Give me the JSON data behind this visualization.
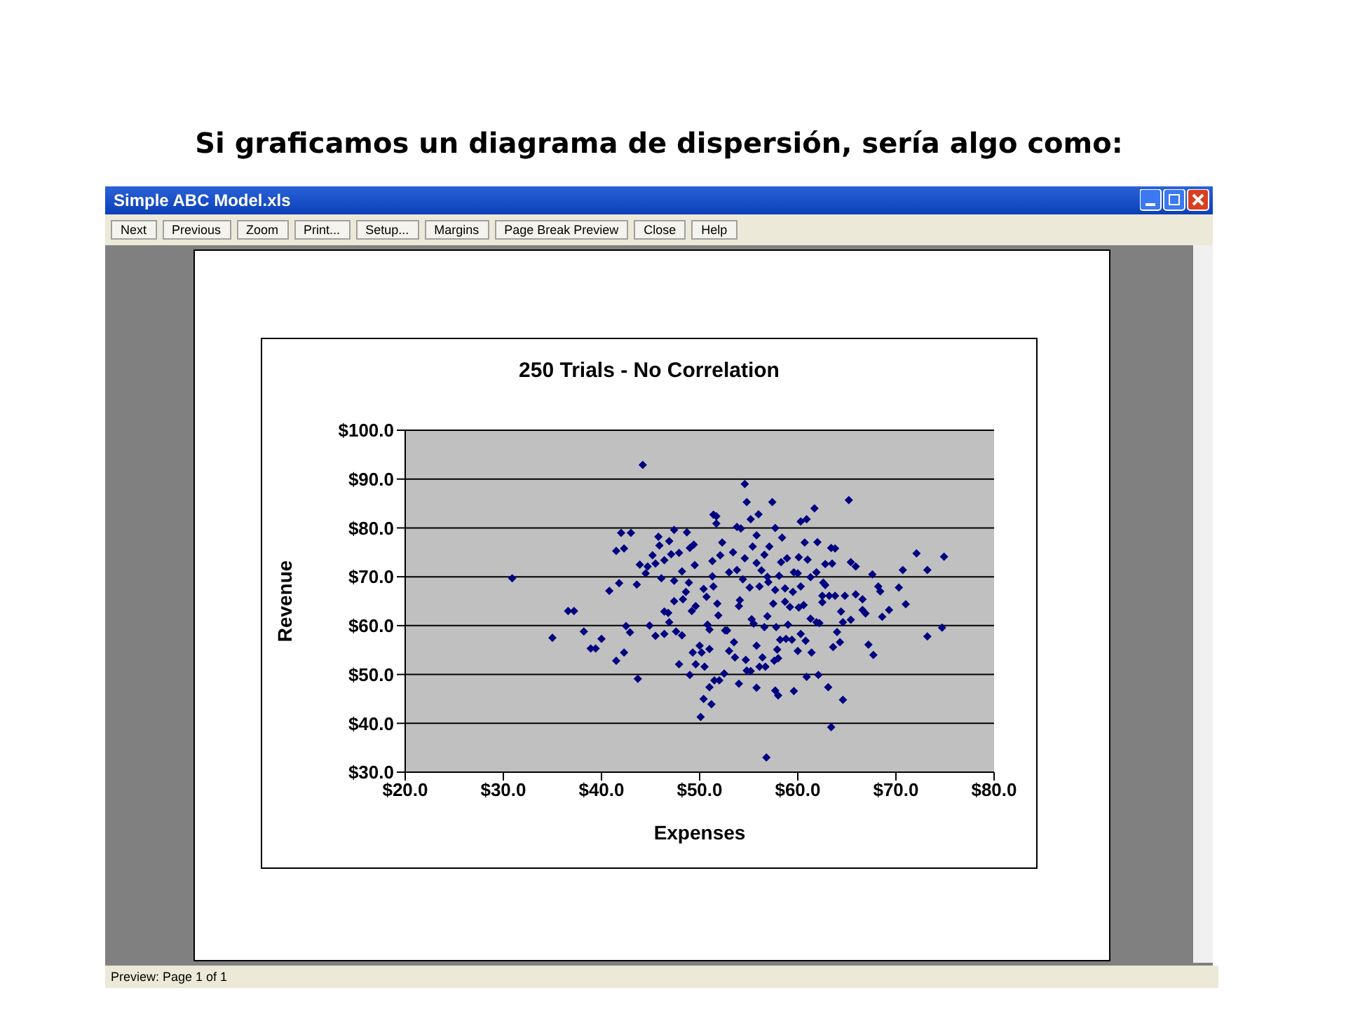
{
  "chart_data": {
    "type": "scatter",
    "title": "Si graficamos un diagrama de dispersión, sería algo como:",
    "subtitle": "250 Trials - No Correlation",
    "xlabel": "Expenses",
    "ylabel": "Revenue",
    "annotations": [
      "Simple ABC Model.xls",
      "Next",
      "Previous",
      "Zoom",
      "Print...",
      "Setup...",
      "Margins",
      "Page Break Preview",
      "Close",
      "Help",
      "Preview: Page 1 of 1"
    ],
    "xlim": [
      20,
      80
    ],
    "xticks": [
      {
        "value": 20,
        "label": "$20.0"
      },
      {
        "value": 30,
        "label": "$30.0"
      },
      {
        "value": 40,
        "label": "$40.0"
      },
      {
        "value": 50,
        "label": "$50.0"
      },
      {
        "value": 60,
        "label": "$60.0"
      },
      {
        "value": 70,
        "label": "$70.0"
      },
      {
        "value": 80,
        "label": "$80.0"
      }
    ],
    "ylim": [
      30,
      100
    ],
    "yticks": [
      {
        "value": 30,
        "label": "$30.0"
      },
      {
        "value": 40,
        "label": "$40.0"
      },
      {
        "value": 50,
        "label": "$50.0"
      },
      {
        "value": 60,
        "label": "$60.0"
      },
      {
        "value": 70,
        "label": "$70.0"
      },
      {
        "value": 80,
        "label": "$80.0"
      },
      {
        "value": 90,
        "label": "$90.0"
      },
      {
        "value": 100,
        "label": "$100.0"
      }
    ],
    "grid": "y",
    "marker": "diamond",
    "legend": false,
    "series": [
      {
        "color": "#000080",
        "x": [
          44.2,
          30.9,
          36.6,
          37.2,
          35.0,
          38.2,
          38.9,
          39.4,
          40.0,
          40.8,
          41.5,
          42.0,
          43.0,
          42.3,
          41.8,
          41.5,
          42.3,
          42.5,
          42.9,
          43.7,
          43.6,
          43.9,
          44.5,
          44.7,
          45.2,
          45.8,
          45.9,
          46.9,
          47.4,
          48.7,
          45.5,
          46.4,
          47.1,
          47.9,
          49.0,
          49.4,
          46.1,
          47.4,
          48.2,
          48.9,
          49.5,
          44.9,
          45.5,
          46.4,
          46.4,
          46.8,
          46.9,
          47.4,
          48.3,
          48.6,
          49.2,
          49.6,
          47.6,
          48.2,
          47.9,
          49.0,
          49.3,
          49.6,
          50.0,
          50.5,
          50.2,
          51.0,
          51.0,
          50.4,
          51.2,
          50.1,
          51.4,
          51.7,
          51.7,
          52.3,
          51.3,
          52.1,
          51.3,
          51.4,
          50.4,
          50.7,
          51.8,
          50.8,
          51.0,
          51.9,
          52.6,
          51.5,
          52.0,
          52.5,
          54.6,
          54.8,
          57.4,
          65.2,
          61.7,
          60.3,
          60.9,
          55.2,
          56.0,
          53.8,
          54.2,
          55.8,
          57.7,
          58.4,
          55.4,
          57.1,
          60.7,
          62.0,
          63.4,
          63.8,
          53.4,
          54.6,
          56.6,
          55.8,
          58.3,
          58.9,
          60.1,
          61.0,
          62.8,
          63.5,
          65.4,
          65.9,
          72.1,
          74.9,
          70.7,
          73.2,
          67.6,
          53.0,
          53.8,
          56.3,
          56.9,
          58.1,
          59.6,
          60.0,
          61.9,
          61.3,
          62.6,
          62.8,
          54.4,
          55.1,
          56.1,
          57.0,
          57.7,
          58.7,
          59.5,
          60.3,
          62.5,
          63.2,
          63.8,
          64.8,
          65.9,
          66.6,
          68.2,
          68.4,
          70.3,
          71.0,
          54.1,
          54.0,
          57.5,
          58.7,
          59.2,
          60.1,
          60.6,
          62.5,
          64.4,
          66.6,
          66.9,
          68.6,
          69.3,
          55.3,
          55.5,
          56.9,
          61.3,
          61.9,
          62.2,
          64.6,
          65.4,
          52.8,
          56.6,
          57.8,
          59.0,
          74.7,
          73.2,
          64.0,
          53.5,
          55.8,
          58.2,
          58.8,
          59.4,
          60.3,
          60.8,
          57.9,
          60.0,
          61.4,
          63.6,
          64.3,
          67.2,
          67.7,
          53.0,
          53.6,
          54.7,
          56.4,
          57.6,
          58.0,
          54.8,
          55.2,
          56.1,
          56.7,
          54.0,
          55.8,
          57.7,
          58.0,
          59.6,
          60.9,
          62.1,
          63.1,
          64.6,
          63.4,
          56.8
        ],
        "values": [
          92.9,
          69.7,
          63.0,
          63.0,
          57.5,
          58.8,
          55.3,
          55.3,
          57.3,
          67.1,
          75.3,
          79.0,
          79.0,
          75.8,
          68.7,
          52.8,
          54.5,
          59.9,
          58.6,
          49.1,
          68.4,
          72.5,
          70.7,
          72.1,
          74.4,
          78.2,
          76.4,
          77.3,
          79.6,
          79.1,
          72.7,
          73.4,
          74.6,
          74.9,
          75.9,
          76.6,
          69.7,
          69.2,
          71.1,
          68.8,
          72.4,
          60.0,
          57.9,
          58.3,
          62.9,
          62.6,
          60.7,
          65.0,
          65.4,
          66.9,
          63.0,
          64.0,
          58.8,
          58.0,
          52.1,
          49.9,
          54.5,
          52.1,
          55.9,
          51.6,
          54.5,
          55.2,
          47.4,
          45.0,
          43.9,
          41.3,
          82.7,
          82.4,
          80.9,
          77.0,
          73.2,
          74.4,
          70.1,
          68.0,
          67.5,
          65.9,
          64.5,
          60.2,
          59.2,
          62.1,
          59.0,
          48.8,
          48.8,
          50.2,
          89.0,
          85.3,
          85.3,
          85.7,
          84.0,
          81.3,
          81.8,
          81.8,
          82.8,
          80.2,
          79.9,
          78.5,
          80.0,
          78.0,
          76.2,
          76.2,
          77.0,
          77.1,
          75.9,
          75.8,
          75.0,
          73.8,
          74.5,
          72.8,
          73.0,
          73.8,
          74.0,
          73.5,
          72.6,
          72.7,
          73.0,
          72.1,
          74.8,
          74.1,
          71.4,
          71.4,
          70.5,
          70.9,
          71.4,
          71.3,
          70.0,
          70.2,
          70.9,
          70.7,
          70.9,
          69.9,
          68.8,
          68.3,
          69.5,
          67.8,
          68.0,
          68.9,
          67.3,
          67.6,
          66.9,
          68.0,
          66.1,
          66.1,
          66.1,
          66.1,
          66.4,
          65.4,
          68.0,
          67.0,
          67.8,
          64.4,
          65.2,
          64.0,
          64.5,
          64.9,
          63.8,
          63.7,
          64.2,
          64.8,
          62.9,
          63.2,
          62.5,
          61.8,
          63.2,
          61.3,
          60.4,
          61.9,
          61.4,
          60.7,
          60.5,
          60.7,
          61.2,
          59.0,
          59.7,
          59.7,
          60.2,
          59.6,
          57.8,
          58.7,
          56.6,
          55.9,
          57.1,
          57.3,
          57.1,
          58.3,
          56.9,
          55.1,
          54.8,
          54.5,
          55.6,
          56.6,
          56.1,
          54.0,
          54.8,
          53.5,
          53.0,
          53.5,
          52.8,
          53.3,
          50.8,
          50.7,
          51.6,
          51.6,
          48.1,
          47.3,
          46.7,
          45.7,
          46.6,
          49.5,
          49.9,
          47.4,
          44.8,
          39.2,
          33.0
        ]
      }
    ]
  }
}
